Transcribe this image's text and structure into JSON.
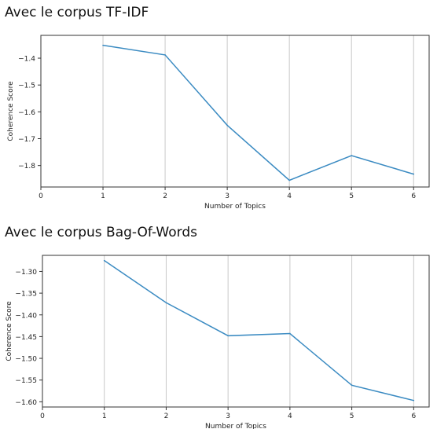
{
  "sections": [
    {
      "heading": "Avec le corpus TF-IDF"
    },
    {
      "heading": "Avec le corpus Bag-Of-Words"
    }
  ],
  "chart_data": [
    {
      "type": "line",
      "title": "",
      "xlabel": "Number of Topics",
      "ylabel": "Coherence Score",
      "x": [
        1,
        2,
        3,
        4,
        5,
        6
      ],
      "series": [
        {
          "values": [
            -1.352,
            -1.388,
            -1.65,
            -1.855,
            -1.763,
            -1.832
          ],
          "color": "#3b8bc2"
        }
      ],
      "xlim": [
        0,
        6.25
      ],
      "ylim": [
        -1.88,
        -1.315
      ],
      "xticks": [
        0,
        1,
        2,
        3,
        4,
        5,
        6
      ],
      "yticks": [
        -1.4,
        -1.5,
        -1.6,
        -1.7,
        -1.8
      ],
      "ytick_labels": [
        "−1.4",
        "−1.5",
        "−1.6",
        "−1.7",
        "−1.8"
      ],
      "grid": "vertical"
    },
    {
      "type": "line",
      "title": "",
      "xlabel": "Number of Topics",
      "ylabel": "Coherence Score",
      "x": [
        1,
        2,
        3,
        4,
        5,
        6
      ],
      "series": [
        {
          "values": [
            -1.275,
            -1.372,
            -1.448,
            -1.443,
            -1.562,
            -1.597
          ],
          "color": "#3b8bc2"
        }
      ],
      "xlim": [
        0,
        6.25
      ],
      "ylim": [
        -1.612,
        -1.263
      ],
      "xticks": [
        0,
        1,
        2,
        3,
        4,
        5,
        6
      ],
      "yticks": [
        -1.3,
        -1.35,
        -1.4,
        -1.45,
        -1.5,
        -1.55,
        -1.6
      ],
      "ytick_labels": [
        "−1.30",
        "−1.35",
        "−1.40",
        "−1.45",
        "−1.50",
        "−1.55",
        "−1.60"
      ],
      "grid": "vertical"
    }
  ]
}
